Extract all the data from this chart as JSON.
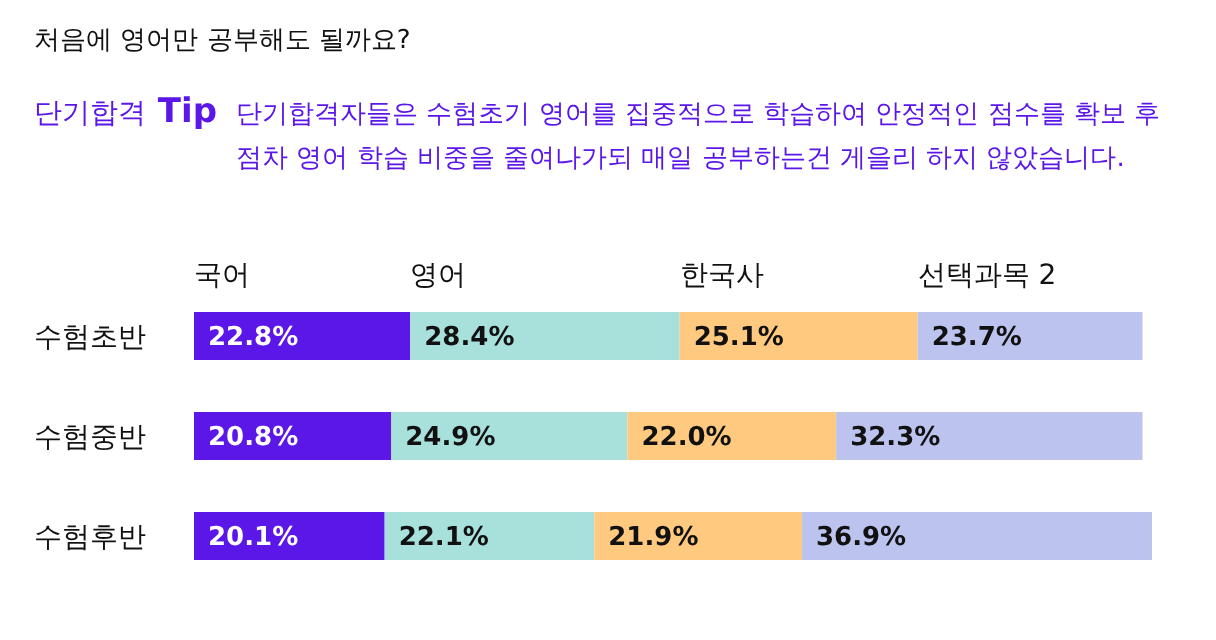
{
  "chart_data": {
    "type": "bar",
    "orientation": "horizontal",
    "stacked": true,
    "title": "처음에 영어만 공부해도 될까요?",
    "annotations": [
      "단기합격 Tip",
      "단기합격자들은 수험초기 영어를 집중적으로 학습하여 안정적인 점수를 확보 후 점차 영어 학습 비중을 줄여나가되 매일 공부하는건 게을리 하지 않았습니다."
    ],
    "categories": [
      "수험초반",
      "수험중반",
      "수험후반"
    ],
    "legend": "top",
    "series": [
      {
        "name": "국어",
        "color": "#5b17e8",
        "values": [
          22.8,
          20.8,
          20.1
        ],
        "value_labels": [
          "22.8%",
          "20.8%",
          "20.1%"
        ]
      },
      {
        "name": "영어",
        "color": "#a8e0dc",
        "values": [
          28.4,
          24.9,
          22.1
        ],
        "value_labels": [
          "28.4%",
          "24.9%",
          "22.1%"
        ]
      },
      {
        "name": "한국사",
        "color": "#ffca80",
        "values": [
          25.1,
          22.0,
          21.9
        ],
        "value_labels": [
          "25.1%",
          "22.0%",
          "21.9%"
        ]
      },
      {
        "name": "선택과목 2",
        "color": "#bcc3ef",
        "values": [
          23.7,
          32.3,
          36.9
        ],
        "value_labels": [
          "23.7%",
          "32.3%",
          "36.9%"
        ]
      }
    ]
  }
}
